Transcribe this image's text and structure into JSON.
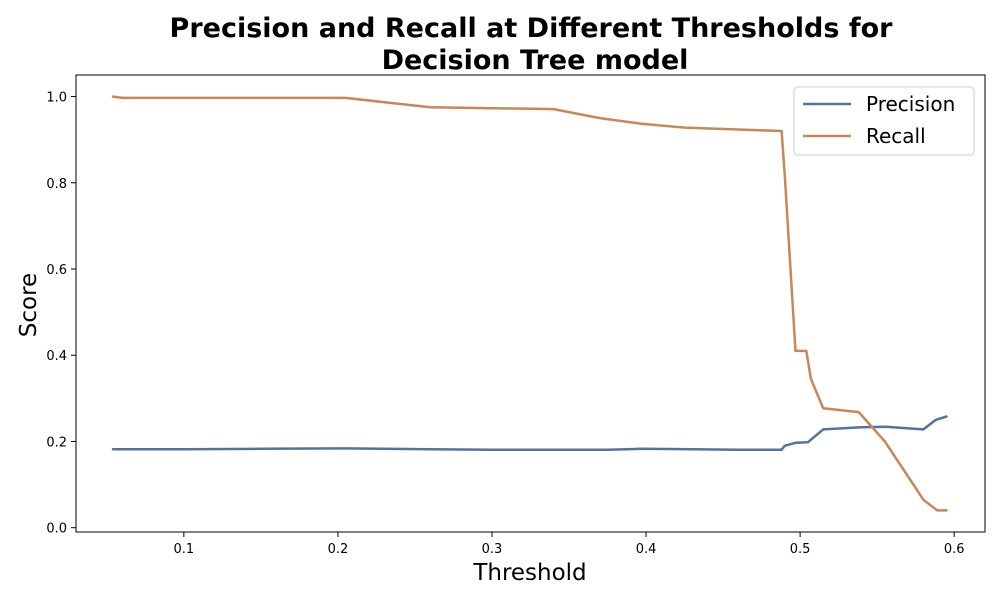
{
  "colors": {
    "precision": "#5471a2",
    "recall": "#c98758"
  },
  "chart_data": {
    "type": "line",
    "title_line1": "Precision and Recall at Different Thresholds for",
    "title_line2": "Decision Tree  model",
    "xlabel": "Threshold",
    "ylabel": "Score",
    "xlim": [
      0.03,
      0.62
    ],
    "ylim": [
      -0.01,
      1.05
    ],
    "xticks": [
      0.1,
      0.2,
      0.3,
      0.4,
      0.5,
      0.6
    ],
    "xtick_labels": [
      "0.1",
      "0.2",
      "0.3",
      "0.4",
      "0.5",
      "0.6"
    ],
    "yticks": [
      0.0,
      0.2,
      0.4,
      0.6,
      0.8,
      1.0
    ],
    "ytick_labels": [
      "0.0",
      "0.2",
      "0.4",
      "0.6",
      "0.8",
      "1.0"
    ],
    "legend_position": "top-right",
    "series": [
      {
        "name": "Precision",
        "color_key": "precision",
        "points": [
          [
            0.054,
            0.182
          ],
          [
            0.1,
            0.182
          ],
          [
            0.15,
            0.183
          ],
          [
            0.205,
            0.184
          ],
          [
            0.26,
            0.182
          ],
          [
            0.3,
            0.181
          ],
          [
            0.34,
            0.181
          ],
          [
            0.375,
            0.181
          ],
          [
            0.397,
            0.183
          ],
          [
            0.43,
            0.182
          ],
          [
            0.46,
            0.181
          ],
          [
            0.488,
            0.181
          ],
          [
            0.49,
            0.19
          ],
          [
            0.497,
            0.197
          ],
          [
            0.505,
            0.198
          ],
          [
            0.515,
            0.228
          ],
          [
            0.54,
            0.233
          ],
          [
            0.556,
            0.234
          ],
          [
            0.58,
            0.228
          ],
          [
            0.588,
            0.25
          ],
          [
            0.595,
            0.258
          ]
        ]
      },
      {
        "name": "Recall",
        "color_key": "recall",
        "points": [
          [
            0.054,
            1.0
          ],
          [
            0.06,
            0.997
          ],
          [
            0.1,
            0.997
          ],
          [
            0.205,
            0.997
          ],
          [
            0.26,
            0.975
          ],
          [
            0.3,
            0.973
          ],
          [
            0.34,
            0.971
          ],
          [
            0.37,
            0.95
          ],
          [
            0.397,
            0.937
          ],
          [
            0.425,
            0.928
          ],
          [
            0.488,
            0.92
          ],
          [
            0.49,
            0.82
          ],
          [
            0.497,
            0.41
          ],
          [
            0.504,
            0.41
          ],
          [
            0.507,
            0.345
          ],
          [
            0.515,
            0.277
          ],
          [
            0.538,
            0.268
          ],
          [
            0.555,
            0.2
          ],
          [
            0.58,
            0.065
          ],
          [
            0.589,
            0.04
          ],
          [
            0.595,
            0.04
          ]
        ]
      }
    ]
  }
}
